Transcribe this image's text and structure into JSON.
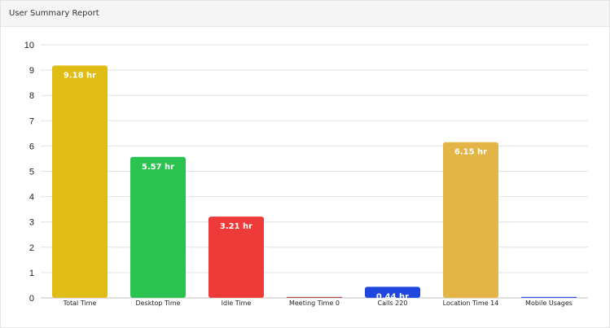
{
  "card": {
    "title": "User Summary Report"
  },
  "chart_data": {
    "type": "bar",
    "title": "",
    "xlabel": "",
    "ylabel": "",
    "categories": [
      "Total Time",
      "Desktop Time",
      "Idle Time",
      "Meeting Time 0",
      "Calls 220",
      "Location Time 14",
      "Mobile Usages"
    ],
    "values": [
      9.18,
      5.57,
      3.21,
      0,
      0.44,
      6.15,
      0
    ],
    "data_labels": [
      "9.18 hr",
      "5.57 hr",
      "3.21 hr",
      "",
      "0.44 hr",
      "6.15 hr",
      ""
    ],
    "colors": [
      "#e0bd14",
      "#2ac350",
      "#ef3a3a",
      "#b23a3a",
      "#1f47e0",
      "#e2b546",
      "#1f47e0"
    ],
    "ylim": [
      0,
      10
    ],
    "yticks": [
      0,
      1,
      2,
      3,
      4,
      5,
      6,
      7,
      8,
      9,
      10
    ],
    "grid": true,
    "legend": "none"
  }
}
